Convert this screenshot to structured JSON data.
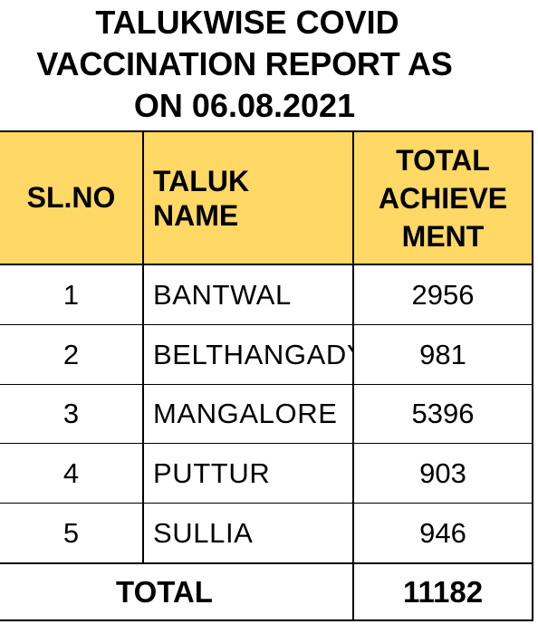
{
  "title": {
    "line1": "TALUKWISE COVID",
    "line2": "VACCINATION REPORT AS",
    "line3": "ON 06.08.2021"
  },
  "headers": {
    "sl_no": "SL.NO",
    "taluk_name_1": "TALUK",
    "taluk_name_2": "NAME",
    "achievement_1": "TOTAL",
    "achievement_2": "ACHIEVE",
    "achievement_3": "MENT"
  },
  "rows": [
    {
      "sl_no": "1",
      "taluk": "BANTWAL",
      "achievement": "2956"
    },
    {
      "sl_no": "2",
      "taluk": "BELTHANGADY",
      "achievement": "981"
    },
    {
      "sl_no": "3",
      "taluk": "MANGALORE",
      "achievement": "5396"
    },
    {
      "sl_no": "4",
      "taluk": "PUTTUR",
      "achievement": "903"
    },
    {
      "sl_no": "5",
      "taluk": "SULLIA",
      "achievement": "946"
    }
  ],
  "total": {
    "label": "TOTAL",
    "value": "11182"
  },
  "colors": {
    "header_fill": "#ffd866",
    "border": "#000000"
  }
}
